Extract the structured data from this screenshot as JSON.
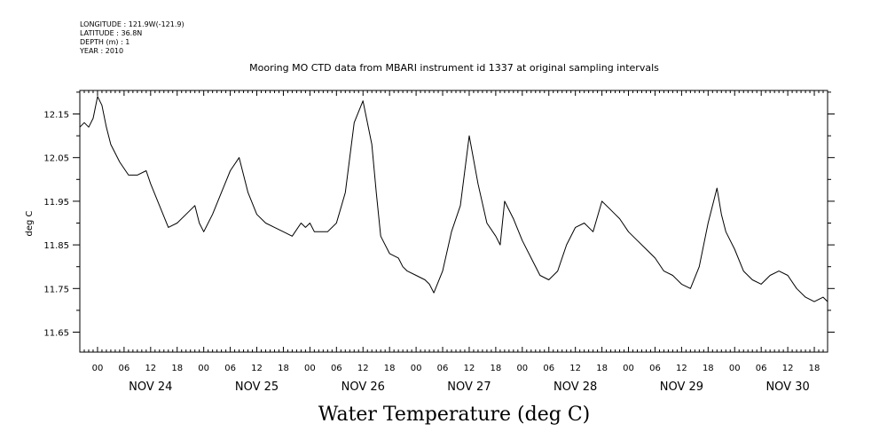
{
  "header": {
    "meta": [
      "LONGITUDE : 121.9W(-121.9)",
      "LATITUDE : 36.8N",
      "DEPTH (m) : 1",
      "YEAR : 2010"
    ],
    "title": "Mooring MO CTD data from MBARI instrument id 1337 at original sampling intervals"
  },
  "chart_data": {
    "type": "line",
    "title": "Mooring MO CTD data from MBARI instrument id 1337 at original sampling intervals",
    "xlabel": "Water Temperature (deg C)",
    "ylabel": "deg C",
    "ylim": [
      11.6,
      12.2
    ],
    "yticks": [
      "12.15",
      "12.05",
      "11.95",
      "11.85",
      "11.75",
      "11.65"
    ],
    "ytick_values": [
      12.15,
      12.05,
      11.95,
      11.85,
      11.75,
      11.65
    ],
    "xlim": [
      "2010-11-23 20:00",
      "2010-11-30 21:00"
    ],
    "hour_tick_labels": [
      "00",
      "06",
      "12",
      "18"
    ],
    "day_labels": [
      "NOV 24",
      "NOV 25",
      "NOV 26",
      "NOV 27",
      "NOV 28",
      "NOV 29",
      "NOV 30"
    ],
    "grid": false,
    "series": [
      {
        "x": [
          "2010-11-23 20:00",
          "2010-11-23 21:00",
          "2010-11-23 22:00",
          "2010-11-23 23:00",
          "2010-11-24 00:00",
          "2010-11-24 01:00",
          "2010-11-24 02:00",
          "2010-11-24 03:00",
          "2010-11-24 05:00",
          "2010-11-24 07:00",
          "2010-11-24 09:00",
          "2010-11-24 11:00",
          "2010-11-24 12:00",
          "2010-11-24 14:00",
          "2010-11-24 16:00",
          "2010-11-24 18:00",
          "2010-11-24 20:00",
          "2010-11-24 22:00",
          "2010-11-24 23:00",
          "2010-11-25 00:00",
          "2010-11-25 02:00",
          "2010-11-25 04:00",
          "2010-11-25 06:00",
          "2010-11-25 08:00",
          "2010-11-25 10:00",
          "2010-11-25 12:00",
          "2010-11-25 14:00",
          "2010-11-25 16:00",
          "2010-11-25 18:00",
          "2010-11-25 20:00",
          "2010-11-25 22:00",
          "2010-11-25 23:00",
          "2010-11-26 00:00",
          "2010-11-26 01:00",
          "2010-11-26 02:00",
          "2010-11-26 04:00",
          "2010-11-26 06:00",
          "2010-11-26 08:00",
          "2010-11-26 10:00",
          "2010-11-26 12:00",
          "2010-11-26 14:00",
          "2010-11-26 15:00",
          "2010-11-26 16:00",
          "2010-11-26 18:00",
          "2010-11-26 20:00",
          "2010-11-26 21:00",
          "2010-11-26 22:00",
          "2010-11-27 00:00",
          "2010-11-27 02:00",
          "2010-11-27 03:00",
          "2010-11-27 04:00",
          "2010-11-27 06:00",
          "2010-11-27 08:00",
          "2010-11-27 10:00",
          "2010-11-27 12:00",
          "2010-11-27 14:00",
          "2010-11-27 16:00",
          "2010-11-27 18:00",
          "2010-11-27 19:00",
          "2010-11-27 20:00",
          "2010-11-27 22:00",
          "2010-11-28 00:00",
          "2010-11-28 02:00",
          "2010-11-28 04:00",
          "2010-11-28 06:00",
          "2010-11-28 08:00",
          "2010-11-28 10:00",
          "2010-11-28 12:00",
          "2010-11-28 14:00",
          "2010-11-28 16:00",
          "2010-11-28 18:00",
          "2010-11-28 20:00",
          "2010-11-28 21:00",
          "2010-11-28 22:00",
          "2010-11-29 00:00",
          "2010-11-29 02:00",
          "2010-11-29 04:00",
          "2010-11-29 06:00",
          "2010-11-29 08:00",
          "2010-11-29 10:00",
          "2010-11-29 12:00",
          "2010-11-29 14:00",
          "2010-11-29 16:00",
          "2010-11-29 18:00",
          "2010-11-29 20:00",
          "2010-11-29 21:00",
          "2010-11-29 22:00",
          "2010-11-30 00:00",
          "2010-11-30 02:00",
          "2010-11-30 04:00",
          "2010-11-30 06:00",
          "2010-11-30 08:00",
          "2010-11-30 10:00",
          "2010-11-30 12:00",
          "2010-11-30 14:00",
          "2010-11-30 16:00",
          "2010-11-30 18:00",
          "2010-11-30 20:00",
          "2010-11-30 21:00"
        ],
        "values": [
          12.12,
          12.13,
          12.12,
          12.14,
          12.19,
          12.17,
          12.12,
          12.08,
          12.04,
          12.01,
          12.01,
          12.02,
          11.99,
          11.94,
          11.89,
          11.9,
          11.92,
          11.94,
          11.9,
          11.88,
          11.92,
          11.97,
          12.02,
          12.05,
          11.97,
          11.92,
          11.9,
          11.89,
          11.88,
          11.87,
          11.9,
          11.89,
          11.9,
          11.88,
          11.88,
          11.88,
          11.9,
          11.97,
          12.13,
          12.18,
          12.08,
          11.97,
          11.87,
          11.83,
          11.82,
          11.8,
          11.79,
          11.78,
          11.77,
          11.76,
          11.74,
          11.79,
          11.88,
          11.94,
          12.1,
          11.99,
          11.9,
          11.87,
          11.85,
          11.95,
          11.91,
          11.86,
          11.82,
          11.78,
          11.77,
          11.79,
          11.85,
          11.89,
          11.9,
          11.88,
          11.95,
          11.93,
          11.92,
          11.91,
          11.88,
          11.86,
          11.84,
          11.82,
          11.79,
          11.78,
          11.76,
          11.75,
          11.8,
          11.9,
          11.98,
          11.92,
          11.88,
          11.84,
          11.79,
          11.77,
          11.76,
          11.78,
          11.79,
          11.78,
          11.75,
          11.73,
          11.72,
          11.73,
          11.72
        ]
      }
    ]
  }
}
